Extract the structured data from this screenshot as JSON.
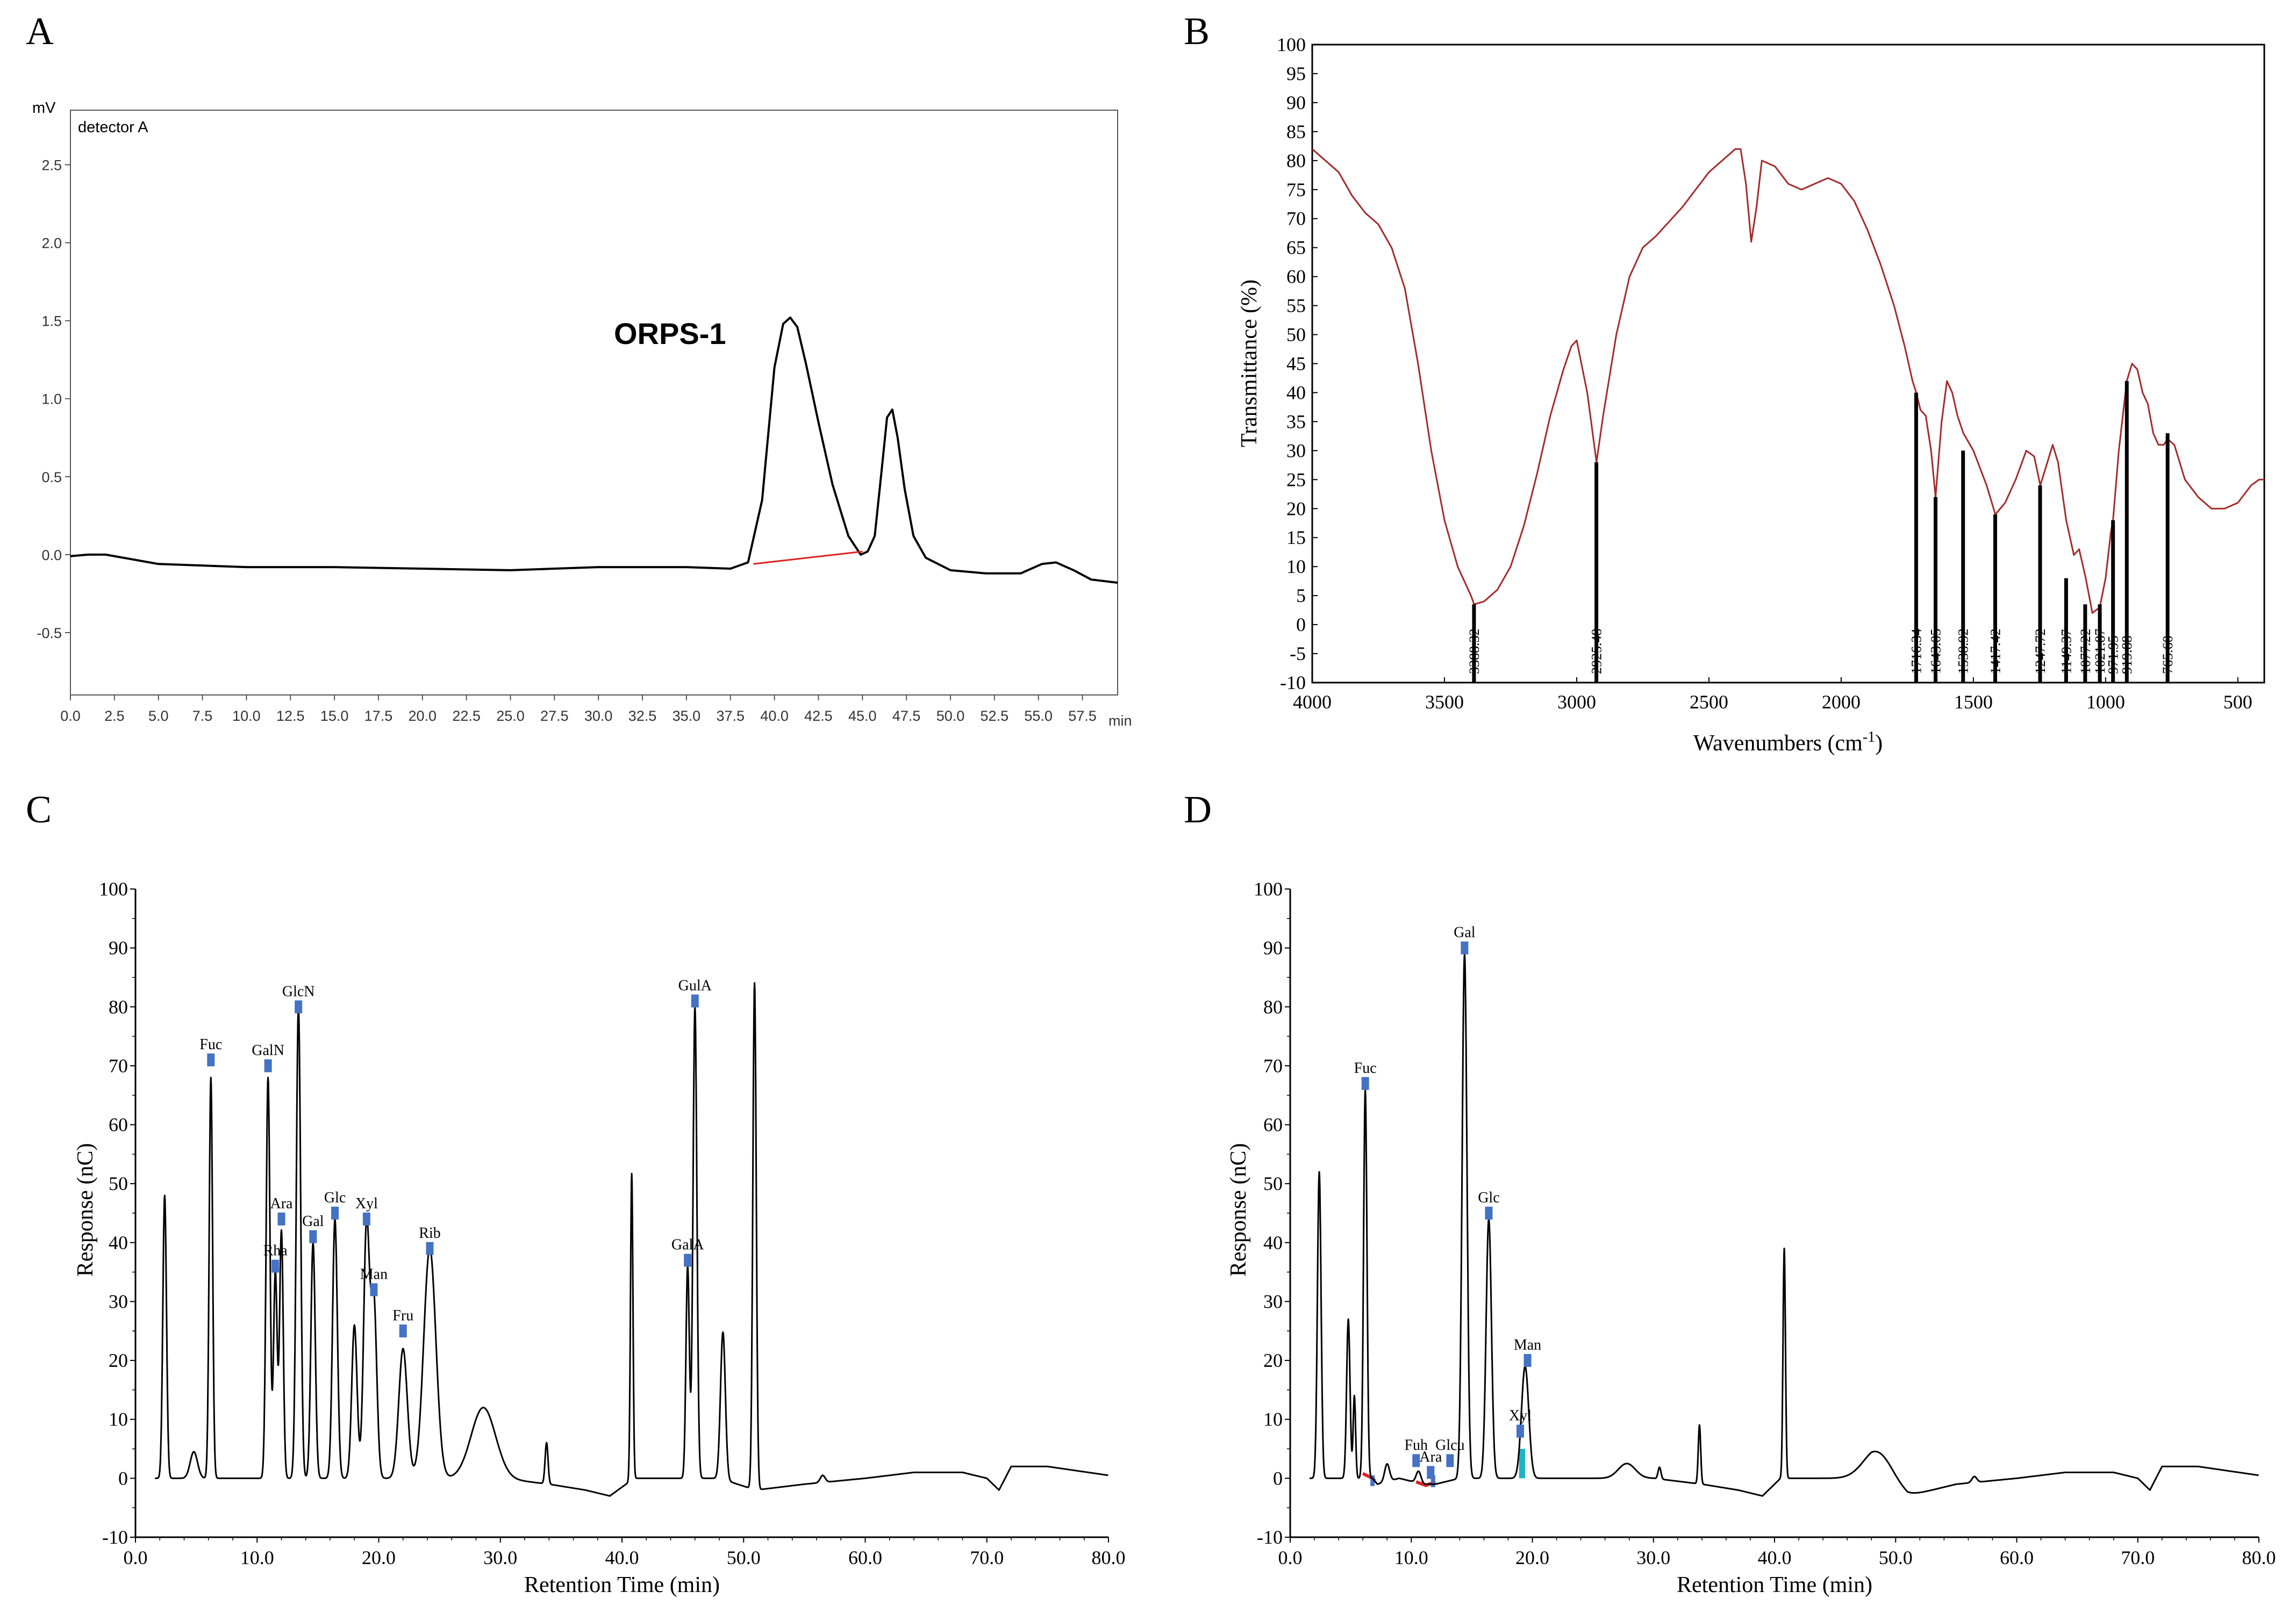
{
  "chart_data": [
    {
      "panel": "A",
      "type": "line",
      "title": "",
      "ylabel_unit": "mV",
      "xlabel_unit": "min",
      "legend": "detector A",
      "annotation": "ORPS-1",
      "xlim": [
        0,
        59.5
      ],
      "ylim": [
        -0.9,
        2.85
      ],
      "xticks": [
        0.0,
        2.5,
        5.0,
        7.5,
        10.0,
        12.5,
        15.0,
        17.5,
        20.0,
        22.5,
        25.0,
        27.5,
        30.0,
        32.5,
        35.0,
        37.5,
        40.0,
        42.5,
        45.0,
        47.5,
        50.0,
        52.5,
        55.0,
        57.5
      ],
      "xtick_labels": [
        "0.0",
        "2.5",
        "5.0",
        "7.5",
        "10.0",
        "12.5",
        "15.0",
        "17.5",
        "20.0",
        "22.5",
        "25.0",
        "27.5",
        "30.0",
        "32.5",
        "35.0",
        "37.5",
        "40.0",
        "42.5",
        "45.0",
        "47.5",
        "50.0",
        "52.5",
        "55.0",
        "57.5"
      ],
      "yticks": [
        -0.5,
        0.0,
        0.5,
        1.0,
        1.5,
        2.0,
        2.5
      ],
      "ytick_labels": [
        "-0.5",
        "0.0",
        "0.5",
        "1.0",
        "1.5",
        "2.0",
        "2.5"
      ],
      "series": [
        {
          "name": "detector A",
          "color": "#000000",
          "x": [
            0,
            1,
            2,
            5,
            10,
            15,
            20,
            25,
            30,
            35,
            37.5,
            38.5,
            39.3,
            40.0,
            40.5,
            40.9,
            41.3,
            41.8,
            42.5,
            43.3,
            44.2,
            44.9,
            45.3,
            45.7,
            46.1,
            46.4,
            46.7,
            47.0,
            47.4,
            47.9,
            48.6,
            50,
            52,
            54,
            55.2,
            56,
            57,
            58,
            59.5
          ],
          "y": [
            -0.01,
            0.0,
            0.0,
            -0.06,
            -0.08,
            -0.08,
            -0.09,
            -0.1,
            -0.08,
            -0.08,
            -0.09,
            -0.05,
            0.35,
            1.2,
            1.48,
            1.52,
            1.46,
            1.22,
            0.85,
            0.45,
            0.12,
            0.0,
            0.02,
            0.12,
            0.55,
            0.88,
            0.93,
            0.75,
            0.42,
            0.12,
            -0.02,
            -0.1,
            -0.12,
            -0.12,
            -0.06,
            -0.05,
            -0.1,
            -0.16,
            -0.18
          ]
        },
        {
          "name": "baseline",
          "color": "#e02020",
          "x": [
            38.8,
            45.0
          ],
          "y": [
            -0.06,
            0.02
          ]
        }
      ]
    },
    {
      "panel": "B",
      "type": "line",
      "xlabel": "Wavenumbers (cm",
      "xlabel_sup": "-1",
      "xlabel_close": ")",
      "ylabel": "Transmittance (%)",
      "xlim": [
        4000,
        400
      ],
      "ylim": [
        -10,
        100
      ],
      "xticks": [
        4000,
        3500,
        3000,
        2500,
        2000,
        1500,
        1000,
        500
      ],
      "xtick_labels": [
        "4000",
        "3500",
        "3000",
        "2500",
        "2000",
        "1500",
        "1000",
        "500"
      ],
      "yticks": [
        -10,
        -5,
        0,
        5,
        10,
        15,
        20,
        25,
        30,
        35,
        40,
        45,
        50,
        55,
        60,
        65,
        70,
        75,
        80,
        85,
        90,
        95,
        100
      ],
      "ytick_labels": [
        "-10",
        "-5",
        "0",
        "5",
        "10",
        "15",
        "20",
        "25",
        "30",
        "35",
        "40",
        "45",
        "50",
        "55",
        "60",
        "65",
        "70",
        "75",
        "80",
        "85",
        "90",
        "95",
        "100"
      ],
      "series": [
        {
          "name": "FT-IR spectrum",
          "color": "#a52a2a",
          "x": [
            4000,
            3900,
            3850,
            3800,
            3750,
            3700,
            3650,
            3600,
            3550,
            3500,
            3450,
            3400,
            3388,
            3350,
            3300,
            3250,
            3200,
            3150,
            3100,
            3050,
            3020,
            3000,
            2960,
            2925,
            2900,
            2850,
            2800,
            2750,
            2700,
            2600,
            2500,
            2450,
            2400,
            2380,
            2360,
            2340,
            2320,
            2300,
            2250,
            2200,
            2150,
            2100,
            2050,
            2000,
            1950,
            1900,
            1850,
            1800,
            1760,
            1730,
            1716,
            1700,
            1680,
            1660,
            1643,
            1620,
            1600,
            1580,
            1560,
            1538,
            1500,
            1450,
            1417,
            1380,
            1340,
            1300,
            1270,
            1247,
            1220,
            1200,
            1180,
            1149,
            1120,
            1100,
            1075,
            1050,
            1022,
            1000,
            980,
            972,
            950,
            930,
            920,
            900,
            880,
            860,
            840,
            820,
            800,
            780,
            766,
            740,
            700,
            650,
            600,
            550,
            500,
            450,
            420,
            400
          ],
          "y": [
            82,
            78,
            74,
            71,
            69,
            65,
            58,
            45,
            30,
            18,
            10,
            5,
            3.5,
            4,
            6,
            10,
            17,
            26,
            36,
            44,
            48,
            49,
            40,
            28,
            36,
            50,
            60,
            65,
            67,
            72,
            78,
            80,
            82,
            82,
            76,
            66,
            72,
            80,
            79,
            76,
            75,
            76,
            77,
            76,
            73,
            68,
            62,
            55,
            48,
            42,
            40,
            37,
            36,
            30,
            22,
            35,
            42,
            40,
            36,
            33,
            30,
            24,
            19,
            21,
            25,
            30,
            29,
            24,
            28,
            31,
            28,
            18,
            12,
            13,
            8,
            2,
            3,
            8,
            16,
            18,
            30,
            38,
            42,
            45,
            44,
            40,
            38,
            33,
            31,
            31,
            32,
            31,
            25,
            22,
            20,
            20,
            21,
            24,
            25,
            25
          ]
        },
        {
          "name": "peak markers",
          "color": "#000000",
          "x": [
            3388.32,
            2925.48,
            1716.34,
            1643.05,
            1538.92,
            1417.42,
            1247.72,
            1149.37,
            1077.22,
            1021.87,
            971.95,
            919.88,
            765.6
          ],
          "y": [
            3.5,
            28,
            40,
            22,
            30,
            19,
            24,
            8,
            3.5,
            3.5,
            18,
            42,
            33
          ]
        }
      ],
      "peak_labels": [
        "3388.32",
        "2925.48",
        "1716.34",
        "1643.05",
        "1538.92",
        "1417.42",
        "1247.72",
        "1149.37",
        "1077.22",
        "1021.87",
        "971.95",
        "919.88",
        "765.60"
      ]
    },
    {
      "panel": "C",
      "type": "line",
      "xlabel": "Retention Time (min)",
      "ylabel": "Response (nC)",
      "xlim": [
        0,
        80
      ],
      "ylim": [
        -10,
        100
      ],
      "xticks": [
        0,
        10,
        20,
        30,
        40,
        50,
        60,
        70,
        80
      ],
      "xtick_labels": [
        "0.0",
        "10.0",
        "20.0",
        "30.0",
        "40.0",
        "50.0",
        "60.0",
        "70.0",
        "80.0"
      ],
      "yticks": [
        -10,
        0,
        10,
        20,
        30,
        40,
        50,
        60,
        70,
        80,
        90,
        100
      ],
      "ytick_labels": [
        "-10",
        "0",
        "10",
        "20",
        "30",
        "40",
        "50",
        "60",
        "70",
        "80",
        "90",
        "100"
      ],
      "peaks": [
        {
          "t": 2.4,
          "h": 48,
          "w": 0.15
        },
        {
          "t": 4.8,
          "h": 4.5,
          "w": 0.3
        },
        {
          "t": 6.2,
          "h": 68,
          "w": 0.14
        },
        {
          "t": 10.9,
          "h": 68,
          "w": 0.16
        },
        {
          "t": 11.5,
          "h": 35,
          "w": 0.15
        },
        {
          "t": 12.0,
          "h": 42,
          "w": 0.15
        },
        {
          "t": 13.4,
          "h": 80,
          "w": 0.18
        },
        {
          "t": 14.6,
          "h": 40,
          "w": 0.18
        },
        {
          "t": 16.4,
          "h": 44,
          "w": 0.2
        },
        {
          "t": 18.0,
          "h": 26,
          "w": 0.22
        },
        {
          "t": 19.0,
          "h": 43,
          "w": 0.24
        },
        {
          "t": 19.6,
          "h": 30,
          "w": 0.24
        },
        {
          "t": 22.0,
          "h": 22,
          "w": 0.35
        },
        {
          "t": 24.2,
          "h": 39,
          "w": 0.5
        },
        {
          "t": 28.6,
          "h": 12,
          "w": 1.0
        },
        {
          "t": 33.8,
          "h": 7,
          "w": 0.12
        },
        {
          "t": 40.8,
          "h": 52,
          "w": 0.1
        },
        {
          "t": 45.4,
          "h": 36,
          "w": 0.14
        },
        {
          "t": 46.0,
          "h": 80,
          "w": 0.16
        },
        {
          "t": 48.3,
          "h": 25,
          "w": 0.2
        },
        {
          "t": 50.9,
          "h": 86,
          "w": 0.14
        },
        {
          "t": 56.5,
          "h": 1.2,
          "w": 0.2
        }
      ],
      "baseline": {
        "x": [
          0,
          2,
          10,
          20,
          30,
          34,
          37,
          39,
          41,
          44,
          48,
          51,
          55,
          60,
          64,
          66,
          68,
          70,
          71,
          72,
          75,
          80
        ],
        "y": [
          0,
          0,
          0,
          0,
          0,
          -1,
          -2,
          -3,
          0,
          0,
          0,
          -2,
          -1,
          0,
          1,
          1,
          1,
          0,
          -2,
          2,
          2,
          0.5
        ]
      },
      "labels": [
        {
          "name": "Fuc",
          "t": 6.2,
          "h": 71
        },
        {
          "name": "GalN",
          "t": 10.9,
          "h": 70
        },
        {
          "name": "Rha",
          "t": 11.5,
          "h": 36
        },
        {
          "name": "Ara",
          "t": 12.0,
          "h": 44
        },
        {
          "name": "GlcN",
          "t": 13.4,
          "h": 80
        },
        {
          "name": "Gal",
          "t": 14.6,
          "h": 41
        },
        {
          "name": "Glc",
          "t": 16.4,
          "h": 45
        },
        {
          "name": "Xyl",
          "t": 19.0,
          "h": 44
        },
        {
          "name": "Man",
          "t": 19.6,
          "h": 32
        },
        {
          "name": "Fru",
          "t": 22.0,
          "h": 25
        },
        {
          "name": "Rib",
          "t": 24.2,
          "h": 39
        },
        {
          "name": "GalA",
          "t": 45.4,
          "h": 37
        },
        {
          "name": "GulA",
          "t": 46.0,
          "h": 81
        }
      ]
    },
    {
      "panel": "D",
      "type": "line",
      "xlabel": "Retention Time (min)",
      "ylabel": "Response (nC)",
      "xlim": [
        0,
        80
      ],
      "ylim": [
        -10,
        100
      ],
      "xticks": [
        0,
        10,
        20,
        30,
        40,
        50,
        60,
        70,
        80
      ],
      "xtick_labels": [
        "0.0",
        "10.0",
        "20.0",
        "30.0",
        "40.0",
        "50.0",
        "60.0",
        "70.0",
        "80.0"
      ],
      "yticks": [
        -10,
        0,
        10,
        20,
        30,
        40,
        50,
        60,
        70,
        80,
        90,
        100
      ],
      "ytick_labels": [
        "-10",
        "0",
        "10",
        "20",
        "30",
        "40",
        "50",
        "60",
        "70",
        "80",
        "90",
        "100"
      ],
      "peaks": [
        {
          "t": 2.4,
          "h": 52,
          "w": 0.15
        },
        {
          "t": 4.8,
          "h": 27,
          "w": 0.14
        },
        {
          "t": 5.3,
          "h": 14,
          "w": 0.1
        },
        {
          "t": 6.2,
          "h": 66,
          "w": 0.14
        },
        {
          "t": 8.0,
          "h": 3,
          "w": 0.2
        },
        {
          "t": 10.6,
          "h": 2,
          "w": 0.2
        },
        {
          "t": 14.4,
          "h": 89,
          "w": 0.2
        },
        {
          "t": 16.4,
          "h": 44,
          "w": 0.22
        },
        {
          "t": 19.4,
          "h": 19,
          "w": 0.3
        },
        {
          "t": 27.8,
          "h": 2.5,
          "w": 0.7
        },
        {
          "t": 30.5,
          "h": 2,
          "w": 0.12
        },
        {
          "t": 33.8,
          "h": 10,
          "w": 0.1
        },
        {
          "t": 40.8,
          "h": 39,
          "w": 0.1
        },
        {
          "t": 48.6,
          "h": 5,
          "w": 1.2
        },
        {
          "t": 56.5,
          "h": 1,
          "w": 0.2
        }
      ],
      "baseline": {
        "x": [
          0,
          2,
          6.8,
          7.2,
          9,
          11,
          12,
          14,
          20,
          24,
          30,
          34,
          37,
          39,
          40.5,
          44,
          48,
          51,
          55,
          60,
          64,
          66,
          68,
          70,
          71,
          72,
          75,
          80
        ],
        "y": [
          0,
          0,
          0,
          -1,
          0,
          -1,
          -1,
          0,
          0,
          0,
          0,
          -1,
          -2,
          -3,
          0,
          0,
          0,
          -3,
          -1,
          0,
          1,
          1,
          1,
          0,
          -2,
          2,
          2,
          0.5
        ]
      },
      "labels": [
        {
          "name": "Fuc",
          "t": 6.2,
          "h": 67
        },
        {
          "name": "Fuh",
          "t": 10.4,
          "h": 3
        },
        {
          "name": "Ara",
          "t": 11.6,
          "h": 1
        },
        {
          "name": "Glcu",
          "t": 13.2,
          "h": 3
        },
        {
          "name": "Gal",
          "t": 14.4,
          "h": 90
        },
        {
          "name": "Glc",
          "t": 16.4,
          "h": 45
        },
        {
          "name": "Xyl",
          "t": 19.0,
          "h": 8
        },
        {
          "name": "Man",
          "t": 19.6,
          "h": 20
        }
      ]
    }
  ],
  "panel_letters": {
    "a": "A",
    "b": "B",
    "c": "C",
    "d": "D"
  },
  "colors": {
    "ir": "#a52a2a",
    "baseline_red": "#e02020",
    "marker_blue": "#4472c4",
    "cyan": "#1fb3c9"
  }
}
